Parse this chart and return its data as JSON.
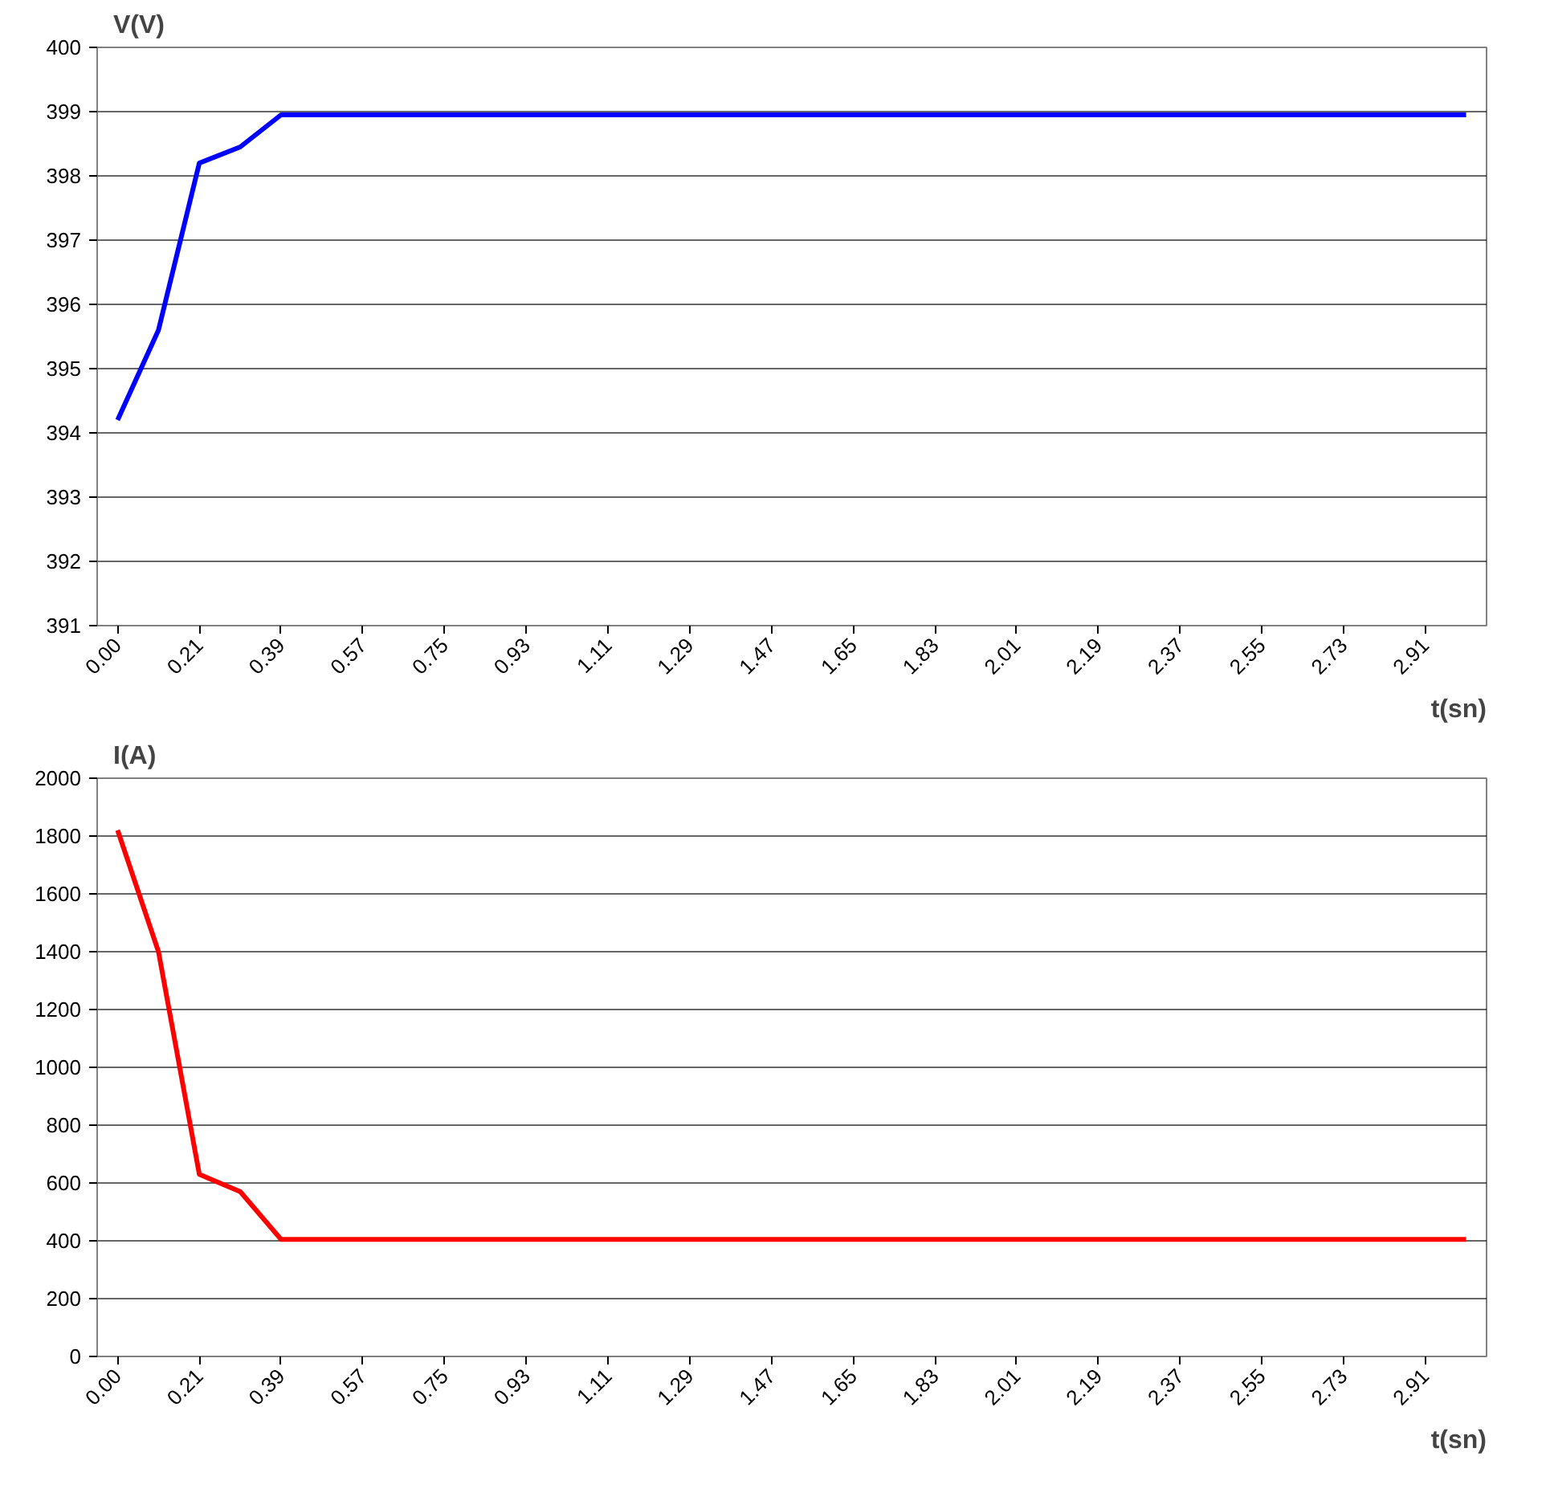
{
  "chart_data": [
    {
      "type": "line",
      "ylabel": "V(V)",
      "xlabel": "t(sn)",
      "categories": [
        "0.00",
        null,
        "0.21",
        null,
        "0.39",
        null,
        "0.57",
        null,
        "0.75",
        null,
        "0.93",
        null,
        "1.11",
        null,
        "1.29",
        null,
        "1.47",
        null,
        "1.65",
        null,
        "1.83",
        null,
        "2.01",
        null,
        "2.19",
        null,
        "2.37",
        null,
        "2.55",
        null,
        "2.73",
        null,
        "2.91",
        null
      ],
      "series": [
        {
          "color": "#0000ff",
          "values": [
            394.2,
            395.6,
            398.2,
            398.45,
            398.95,
            398.95,
            398.95,
            398.95,
            398.95,
            398.95,
            398.95,
            398.95,
            398.95,
            398.95,
            398.95,
            398.95,
            398.95,
            398.95,
            398.95,
            398.95,
            398.95,
            398.95,
            398.95,
            398.95,
            398.95,
            398.95,
            398.95,
            398.95,
            398.95,
            398.95,
            398.95,
            398.95,
            398.95,
            398.95
          ]
        }
      ],
      "ylim": [
        391,
        400
      ],
      "yticks": [
        391,
        392,
        393,
        394,
        395,
        396,
        397,
        398,
        399,
        400
      ],
      "grid": "y",
      "marker": "none",
      "line_style": "solid"
    },
    {
      "type": "line",
      "ylabel": "I(A)",
      "xlabel": "t(sn)",
      "categories": [
        "0.00",
        null,
        "0.21",
        null,
        "0.39",
        null,
        "0.57",
        null,
        "0.75",
        null,
        "0.93",
        null,
        "1.11",
        null,
        "1.29",
        null,
        "1.47",
        null,
        "1.65",
        null,
        "1.83",
        null,
        "2.01",
        null,
        "2.19",
        null,
        "2.37",
        null,
        "2.55",
        null,
        "2.73",
        null,
        "2.91",
        null
      ],
      "series": [
        {
          "color": "#ff0000",
          "values": [
            1820,
            1400,
            630,
            570,
            405,
            405,
            405,
            405,
            405,
            405,
            405,
            405,
            405,
            405,
            405,
            405,
            405,
            405,
            405,
            405,
            405,
            405,
            405,
            405,
            405,
            405,
            405,
            405,
            405,
            405,
            405,
            405,
            405,
            405
          ]
        }
      ],
      "ylim": [
        0,
        2000
      ],
      "yticks": [
        0,
        200,
        400,
        600,
        800,
        1000,
        1200,
        1400,
        1600,
        1800,
        2000
      ],
      "grid": "y",
      "marker": "none",
      "line_style": "solid"
    }
  ]
}
